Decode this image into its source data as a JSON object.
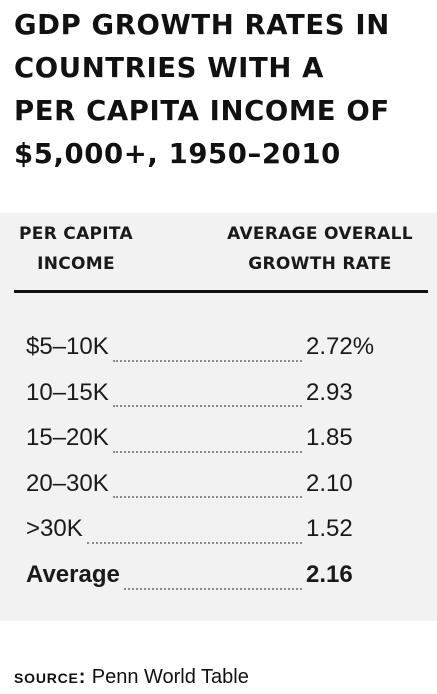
{
  "title_lines": [
    "GDP GROWTH RATES IN",
    "COUNTRIES WITH A",
    "PER CAPITA INCOME OF",
    "$5,000+, 1950–2010"
  ],
  "columns": {
    "left": [
      "PER CAPITA",
      "INCOME"
    ],
    "right": [
      "AVERAGE OVERALL",
      "GROWTH RATE"
    ]
  },
  "rows": [
    {
      "income": "$5–10K",
      "rate": "2.72%"
    },
    {
      "income": "10–15K",
      "rate": "2.93"
    },
    {
      "income": "15–20K",
      "rate": "1.85"
    },
    {
      "income": "20–30K",
      "rate": "2.10"
    },
    {
      "income": ">30K",
      "rate": "1.52"
    }
  ],
  "average": {
    "label": "Average",
    "rate": "2.16"
  },
  "source": {
    "label": "SOURCE:",
    "text": " Penn World Table"
  }
}
